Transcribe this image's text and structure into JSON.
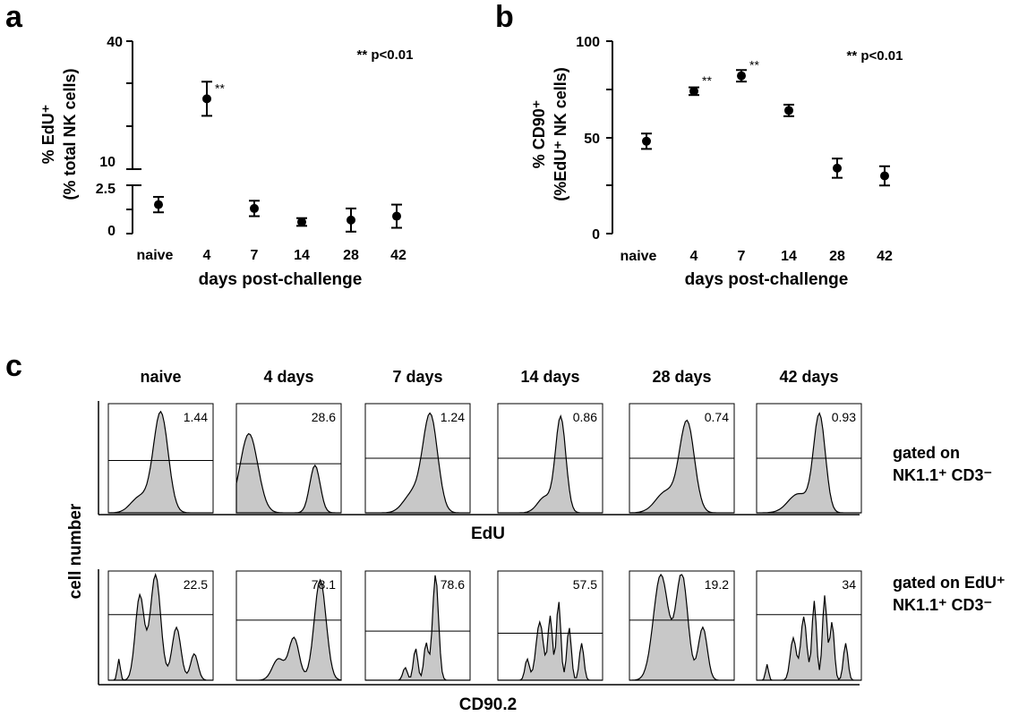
{
  "panels": {
    "a": "a",
    "b": "b",
    "c": "c"
  },
  "chart_data": [
    {
      "type": "scatter",
      "panel": "a",
      "ylabel": "% EdU⁺",
      "ylabel2": "(% total NK cells)",
      "xlabel": "days post-challenge",
      "categories": [
        "naive",
        "4",
        "7",
        "14",
        "28",
        "42"
      ],
      "values": [
        1.5,
        26.5,
        1.3,
        0.6,
        0.7,
        0.9
      ],
      "errors": [
        0.4,
        4.0,
        0.4,
        0.2,
        0.6,
        0.6
      ],
      "y_ticks_lower": [
        "0",
        "2.5"
      ],
      "y_ticks_upper": [
        "10",
        "40"
      ],
      "broken_axis": true,
      "significance": [
        "",
        "**",
        "",
        "",
        "",
        ""
      ],
      "annotation": "** p<0.01"
    },
    {
      "type": "scatter",
      "panel": "b",
      "ylabel": "% CD90⁺",
      "ylabel2": "(%EdU⁺ NK cells)",
      "xlabel": "days post-challenge",
      "categories": [
        "naive",
        "4",
        "7",
        "14",
        "28",
        "42"
      ],
      "values": [
        48,
        74,
        82,
        64,
        34,
        30
      ],
      "errors": [
        4,
        2,
        3,
        3,
        5,
        5
      ],
      "ylim": [
        0,
        100
      ],
      "y_ticks": [
        "0",
        "50",
        "100"
      ],
      "significance": [
        "",
        "**",
        "**",
        "",
        "",
        ""
      ],
      "annotation": "** p<0.01"
    },
    {
      "type": "histogram",
      "panel": "c",
      "column_labels": [
        "naive",
        "4 days",
        "7 days",
        "14 days",
        "28 days",
        "42 days"
      ],
      "rows": [
        {
          "axis_label": "EdU",
          "gate": "gated on",
          "gate2": "NK1.1⁺ CD3⁻",
          "values": [
            "1.44",
            "28.6",
            "1.24",
            "0.86",
            "0.74",
            "0.93"
          ]
        },
        {
          "axis_label": "CD90.2",
          "gate": "gated on EdU⁺",
          "gate2": "NK1.1⁺ CD3⁻",
          "values": [
            "22.5",
            "78.1",
            "78.6",
            "57.5",
            "19.2",
            "34"
          ]
        }
      ],
      "ylabel": "cell number"
    }
  ]
}
